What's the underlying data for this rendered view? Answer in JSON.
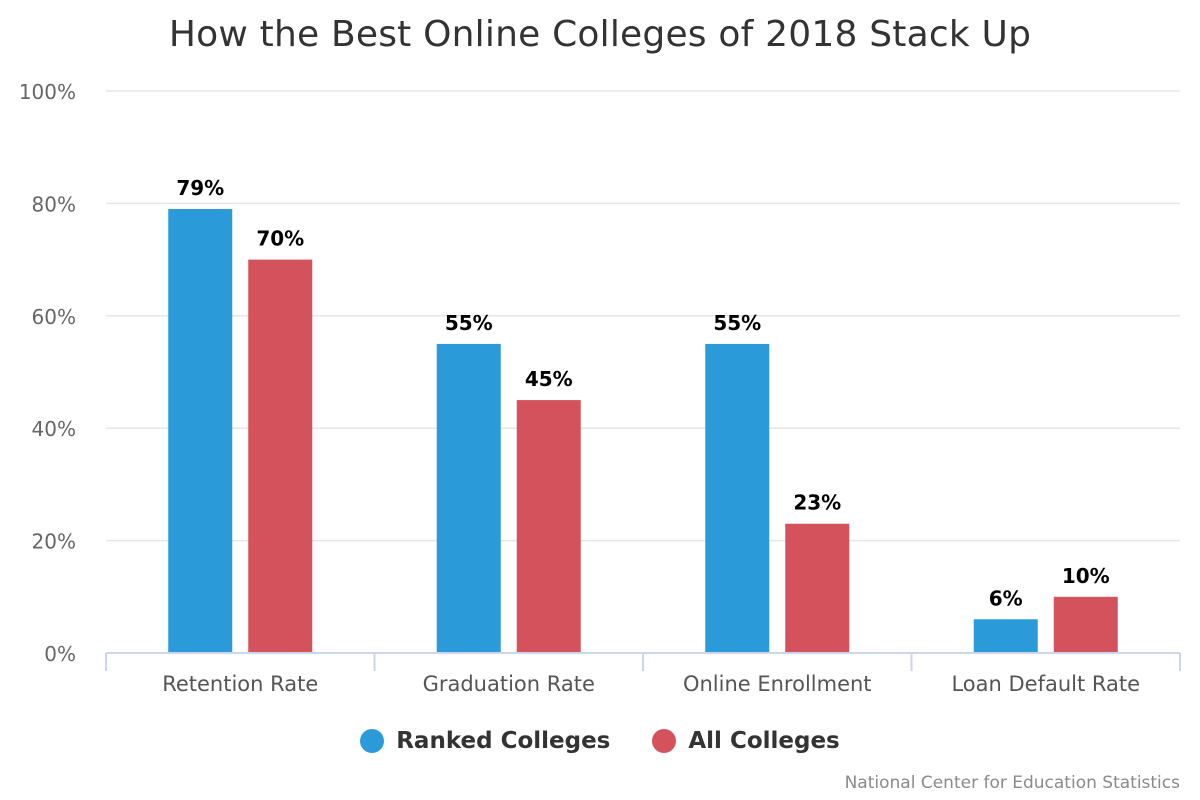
{
  "chart_data": {
    "type": "bar",
    "title": "How the Best Online Colleges of 2018 Stack Up",
    "categories": [
      "Retention Rate",
      "Graduation Rate",
      "Online Enrollment",
      "Loan Default Rate"
    ],
    "series": [
      {
        "name": "Ranked Colleges",
        "color": "#2b9ad9",
        "values": [
          79,
          55,
          55,
          6
        ],
        "labels": [
          "79%",
          "55%",
          "55%",
          "6%"
        ]
      },
      {
        "name": "All Colleges",
        "color": "#d4525c",
        "values": [
          70,
          45,
          23,
          10
        ],
        "labels": [
          "70%",
          "45%",
          "23%",
          "10%"
        ]
      }
    ],
    "ylim": [
      0,
      100
    ],
    "yticks": [
      0,
      20,
      40,
      60,
      80,
      100
    ],
    "ytick_labels": [
      "0%",
      "20%",
      "40%",
      "60%",
      "80%",
      "100%"
    ],
    "grid": true,
    "legend_position": "bottom-center",
    "credit": "National Center for Education Statistics"
  }
}
